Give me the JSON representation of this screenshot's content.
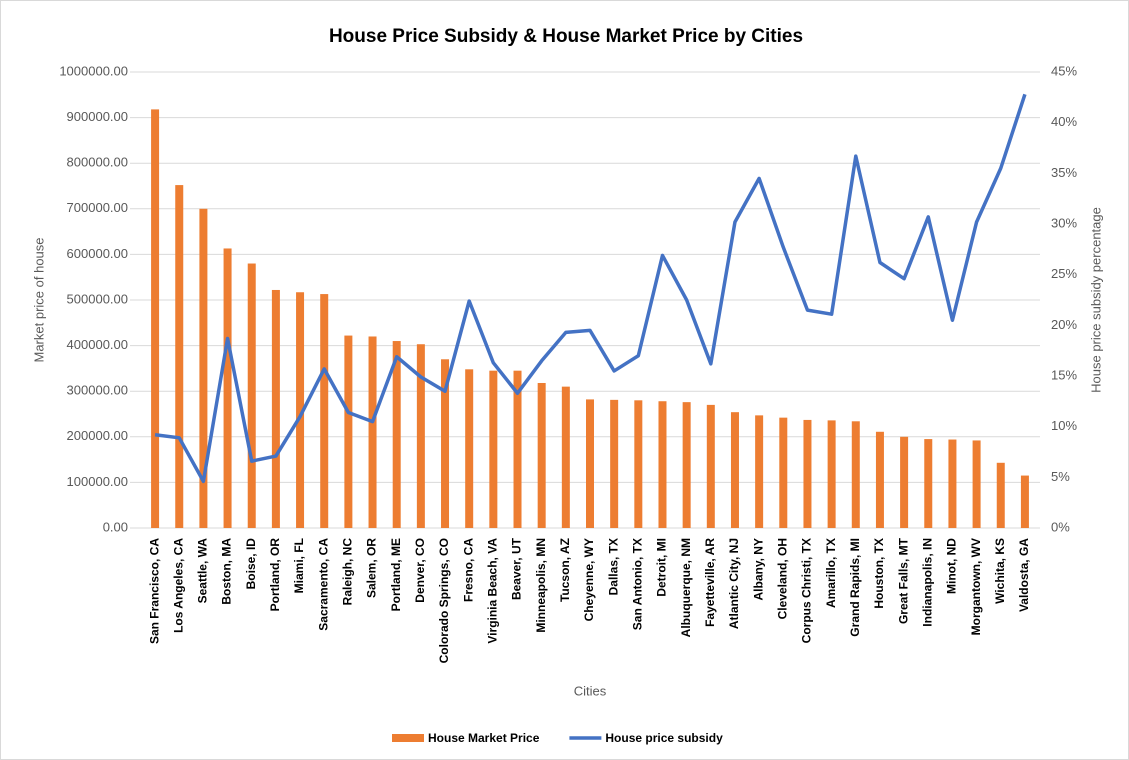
{
  "chart_data": {
    "type": "bar+line",
    "title": "House Price Subsidy & House Market Price by Cities",
    "x_label": "Cities",
    "y_label": "Market price of house",
    "y2_label": "House price subsidy percentage",
    "categories": [
      "San Francisco, CA",
      "Los Angeles, CA",
      "Seattle, WA",
      "Boston, MA",
      "Boise, ID",
      "Portland, OR",
      "Miami, FL",
      "Sacramento, CA",
      "Raleigh, NC",
      "Salem, OR",
      "Portland, ME",
      "Denver, CO",
      "Colorado Springs, CO",
      "Fresno, CA",
      "Virginia Beach, VA",
      "Beaver, UT",
      "Minneapolis, MN",
      "Tucson, AZ",
      "Cheyenne, WY",
      "Dallas, TX",
      "San Antonio, TX",
      "Detroit, MI",
      "Albuquerque, NM",
      "Fayetteville, AR",
      "Atlantic City, NJ",
      "Albany, NY",
      "Cleveland, OH",
      "Corpus Christi, TX",
      "Amarillo, TX",
      "Grand Rapids, MI",
      "Houston, TX",
      "Great Falls, MT",
      "Indianapolis, IN",
      "Minot, ND",
      "Morgantown, WV",
      "Wichita, KS",
      "Valdosta, GA"
    ],
    "series": [
      {
        "name": "House Market Price",
        "type": "bar",
        "color": "#ED7D31",
        "values": [
          918000,
          752000,
          700000,
          613000,
          580000,
          522000,
          517000,
          513000,
          422000,
          420000,
          410000,
          403000,
          370000,
          348000,
          345000,
          345000,
          318000,
          310000,
          282000,
          281000,
          280000,
          278000,
          276000,
          270000,
          254000,
          247000,
          242000,
          237000,
          236000,
          234000,
          211000,
          200000,
          195000,
          194000,
          192000,
          143000,
          115000
        ]
      },
      {
        "name": "House price subsidy",
        "type": "line",
        "axis": "y2",
        "color": "#4472C4",
        "values": [
          9.2,
          8.9,
          4.6,
          18.7,
          6.6,
          7.1,
          11,
          15.7,
          11.4,
          10.5,
          16.9,
          14.9,
          13.5,
          22.4,
          16.3,
          13.3,
          16.5,
          19.3,
          19.5,
          15.5,
          17,
          26.9,
          22.5,
          16.2,
          30.2,
          34.5,
          27.7,
          21.5,
          21.1,
          36.7,
          26.2,
          24.6,
          30.7,
          20.5,
          30.2,
          35.5,
          42.8
        ]
      }
    ],
    "ylim": [
      0,
      1000000
    ],
    "yticks": [
      {
        "value": 0,
        "label": "0.00"
      },
      {
        "value": 100000,
        "label": "100000.00"
      },
      {
        "value": 200000,
        "label": "200000.00"
      },
      {
        "value": 300000,
        "label": "300000.00"
      },
      {
        "value": 400000,
        "label": "400000.00"
      },
      {
        "value": 500000,
        "label": "500000.00"
      },
      {
        "value": 600000,
        "label": "600000.00"
      },
      {
        "value": 700000,
        "label": "700000.00"
      },
      {
        "value": 800000,
        "label": "800000.00"
      },
      {
        "value": 900000,
        "label": "900000.00"
      },
      {
        "value": 1000000,
        "label": "1000000.00"
      }
    ],
    "y2lim": [
      0,
      45
    ],
    "y2ticks": [
      {
        "value": 0,
        "label": "0%"
      },
      {
        "value": 5,
        "label": "5%"
      },
      {
        "value": 10,
        "label": "10%"
      },
      {
        "value": 15,
        "label": "15%"
      },
      {
        "value": 20,
        "label": "20%"
      },
      {
        "value": 25,
        "label": "25%"
      },
      {
        "value": 30,
        "label": "30%"
      },
      {
        "value": 35,
        "label": "35%"
      },
      {
        "value": 40,
        "label": "40%"
      },
      {
        "value": 45,
        "label": "45%"
      }
    ],
    "grid": true,
    "legend": "bottom"
  }
}
